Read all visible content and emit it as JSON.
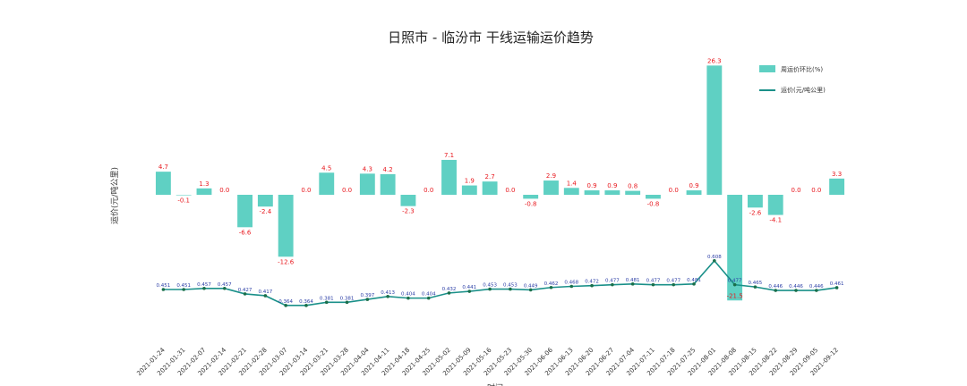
{
  "chart_data": {
    "type": "bar",
    "title": "日照市 - 临汾市 干线运输运价趋势",
    "xlabel": "时间",
    "ylabel": "运价(元/吨公里)",
    "grid": false,
    "legend_position": "top-right",
    "categories": [
      "2021-01-24",
      "2021-01-31",
      "2021-02-07",
      "2021-02-14",
      "2021-02-21",
      "2021-02-28",
      "2021-03-07",
      "2021-03-14",
      "2021-03-21",
      "2021-03-28",
      "2021-04-04",
      "2021-04-11",
      "2021-04-18",
      "2021-04-25",
      "2021-05-02",
      "2021-05-09",
      "2021-05-16",
      "2021-05-23",
      "2021-05-30",
      "2021-06-06",
      "2021-06-13",
      "2021-06-20",
      "2021-06-27",
      "2021-07-04",
      "2021-07-11",
      "2021-07-18",
      "2021-07-25",
      "2021-08-01",
      "2021-08-08",
      "2021-08-15",
      "2021-08-22",
      "2021-08-29",
      "2021-09-05",
      "2021-09-12"
    ],
    "series": [
      {
        "name": "周运价环比(%)",
        "kind": "bar",
        "color": "#5fd0c3",
        "label_color": "#e8181e",
        "values": [
          4.7,
          -0.1,
          1.3,
          0.0,
          -6.6,
          -2.4,
          -12.6,
          0.0,
          4.5,
          0.0,
          4.3,
          4.2,
          -2.3,
          0.0,
          7.1,
          1.9,
          2.7,
          0.0,
          -0.8,
          2.9,
          1.4,
          0.9,
          0.9,
          0.8,
          -0.8,
          0.0,
          0.9,
          26.3,
          -21.5,
          -2.6,
          -4.1,
          0.0,
          0.0,
          3.3
        ],
        "labels": [
          "4.7",
          "-0.1",
          "1.3",
          "0.0",
          "-6.6",
          "-2.4",
          "-12.6",
          "0.0",
          "4.5",
          "0.0",
          "4.3",
          "4.2",
          "-2.3",
          "0.0",
          "7.1",
          "1.9",
          "2.7",
          "0.0",
          "-0.8",
          "2.9",
          "1.4",
          "0.9",
          "0.9",
          "0.8",
          "-0.8",
          "0.0",
          "0.9",
          "26.3",
          "-21.5",
          "-2.6",
          "-4.1",
          "0.0",
          "0.0",
          "3.3"
        ]
      },
      {
        "name": "运价(元/吨公里)",
        "kind": "line",
        "color": "#1a9089",
        "label_color": "#2b3ea6",
        "values": [
          0.451,
          0.451,
          0.457,
          0.457,
          0.427,
          0.417,
          0.364,
          0.364,
          0.381,
          0.381,
          0.397,
          0.413,
          0.404,
          0.404,
          0.432,
          0.441,
          0.453,
          0.453,
          0.449,
          0.462,
          0.468,
          0.472,
          0.477,
          0.481,
          0.477,
          0.477,
          0.481,
          0.608,
          0.477,
          0.465,
          0.446,
          0.446,
          0.446,
          0.461
        ],
        "labels": [
          "0.451",
          "0.451",
          "0.457",
          "0.457",
          "0.427",
          "0.417",
          "0.364",
          "0.364",
          "0.381",
          "0.381",
          "0.397",
          "0.413",
          "0.404",
          "0.404",
          "0.432",
          "0.441",
          "0.453",
          "0.453",
          "0.449",
          "0.462",
          "0.468",
          "0.472",
          "0.477",
          "0.481",
          "0.477",
          "0.477",
          "0.481",
          "0.608",
          "0.477",
          "0.465",
          "0.446",
          "0.446",
          "0.446",
          "0.461"
        ]
      }
    ]
  }
}
